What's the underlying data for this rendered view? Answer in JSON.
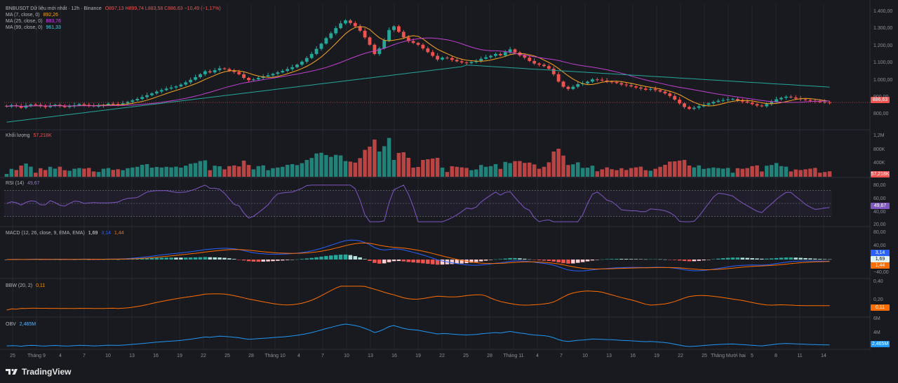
{
  "header": {
    "symbol_line": "BNBUSDT Dữ liệu mới nhất · 12h · Binance",
    "ohlc": "O897,13 H899,74 L883,58 C886,63 −10,49 (−1,17%)",
    "ma7_label": "MA (7, close, 0)",
    "ma7_value": "892,26",
    "ma25_label": "MA (25, close, 0)",
    "ma25_value": "883,76",
    "ma99_label": "MA (99, close, 0)",
    "ma99_value": "961,33"
  },
  "colors": {
    "up": "#26a69a",
    "down": "#ef5350",
    "ma7": "#f5a623",
    "ma25": "#c040d0",
    "ma99": "#26a69a",
    "rsi": "#7e57c2",
    "macd": "#2962ff",
    "signal": "#ff6d00",
    "bbw": "#ff6d00",
    "obv": "#2196f3"
  },
  "price_panel": {
    "last_price_tag": "886,63",
    "y_ticks": [
      "1.400,00",
      "1.300,00",
      "1.200,00",
      "1.100,00",
      "1.000,00",
      "900,00",
      "800,00"
    ]
  },
  "volume_panel": {
    "label": "Khối lượng",
    "value": "57,218K",
    "tag": "57,218K",
    "y_ticks": [
      "1,2M",
      "800K",
      "400K"
    ]
  },
  "rsi_panel": {
    "label": "RSI (14)",
    "value": "49,67",
    "tag": "49,67",
    "y_ticks": [
      "80,00",
      "60,00",
      "40,00",
      "20,00"
    ]
  },
  "macd_panel": {
    "label": "MACD (12, 26, close, 9, EMA, EMA)",
    "v1": "1,69",
    "v2": "3,14",
    "v3": "1,44",
    "tag_macd": "3,14",
    "tag_hist": "1,69",
    "tag_signal": "1,44",
    "y_ticks": [
      "80,00",
      "40,00",
      "−40,00"
    ]
  },
  "bbw_panel": {
    "label": "BBW (20, 2)",
    "value": "0,11",
    "tag": "0,11",
    "y_ticks": [
      "0,40",
      "0,20"
    ]
  },
  "obv_panel": {
    "label": "OBV",
    "value": "2,465M",
    "tag": "2,465M",
    "y_ticks": [
      "6M",
      "4M"
    ]
  },
  "x_axis": [
    "25",
    "Tháng 9",
    "4",
    "7",
    "10",
    "13",
    "16",
    "19",
    "22",
    "25",
    "28",
    "Tháng 10",
    "4",
    "7",
    "10",
    "13",
    "16",
    "19",
    "22",
    "25",
    "28",
    "Tháng 11",
    "4",
    "7",
    "10",
    "13",
    "16",
    "19",
    "22",
    "25",
    "Tháng Mười hai",
    "5",
    "8",
    "11",
    "14"
  ],
  "brand": "TradingView",
  "chart_data": {
    "type": "candlestick",
    "title": "BNBUSDT · 12h · Binance",
    "timeframe": "12h",
    "ylim": [
      750,
      1420
    ],
    "close_series": [
      865,
      872,
      868,
      858,
      870,
      876,
      874,
      866,
      862,
      870,
      874,
      868,
      862,
      866,
      872,
      878,
      874,
      870,
      866,
      868,
      874,
      880,
      878,
      876,
      882,
      890,
      898,
      906,
      916,
      926,
      936,
      946,
      954,
      962,
      968,
      974,
      984,
      996,
      1010,
      1024,
      1040,
      1056,
      1050,
      1062,
      1072,
      1068,
      1060,
      1052,
      1040,
      1020,
      1008,
      1012,
      1020,
      1028,
      1034,
      1042,
      1050,
      1058,
      1068,
      1078,
      1092,
      1108,
      1128,
      1150,
      1178,
      1206,
      1236,
      1262,
      1290,
      1316,
      1332,
      1318,
      1300,
      1276,
      1240,
      1200,
      1150,
      1180,
      1224,
      1280,
      1300,
      1270,
      1240,
      1220,
      1210,
      1200,
      1180,
      1160,
      1140,
      1120,
      1130,
      1128,
      1118,
      1110,
      1104,
      1100,
      1106,
      1112,
      1124,
      1132,
      1140,
      1150,
      1142,
      1160,
      1175,
      1158,
      1142,
      1130,
      1112,
      1098,
      1092,
      1084,
      1070,
      1040,
      1000,
      972,
      960,
      972,
      986,
      990,
      1000,
      1012,
      1010,
      1006,
      1000,
      998,
      992,
      984,
      980,
      974,
      968,
      962,
      956,
      960,
      954,
      946,
      936,
      922,
      902,
      882,
      862,
      852,
      858,
      866,
      874,
      882,
      890,
      896,
      900,
      904,
      906,
      898,
      892,
      886,
      878,
      870,
      866,
      878,
      890,
      904,
      912,
      918,
      914,
      908,
      904,
      900,
      896,
      892,
      890,
      888,
      886
    ]
  }
}
